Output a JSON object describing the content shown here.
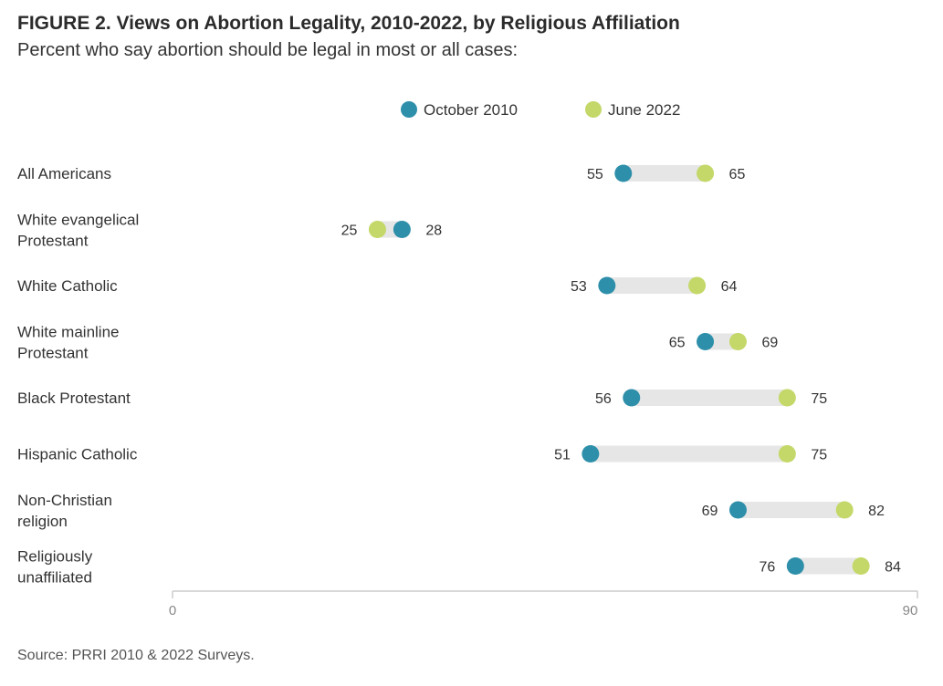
{
  "header": {
    "figure_title": "FIGURE 2.  Views on Abortion Legality, 2010-2022, by Religious Affiliation",
    "subtitle": "Percent who say abortion should be legal in most or all cases:"
  },
  "footer": {
    "source": "Source: PRRI 2010 & 2022 Surveys."
  },
  "colors": {
    "october_2010": "#2e8faa",
    "june_2022": "#c3d868",
    "connector": "#e6e6e6",
    "axis": "#cccccc",
    "label_text": "#333333",
    "tick_text": "#888888"
  },
  "chart_data": {
    "type": "dumbbell",
    "xlim": [
      0,
      90
    ],
    "x_ticks": [
      "0",
      "90"
    ],
    "legend_position": "top",
    "grid": false,
    "series": [
      {
        "name": "October 2010",
        "color": "#2e8faa"
      },
      {
        "name": "June 2022",
        "color": "#c3d868"
      }
    ],
    "categories": [
      {
        "label": [
          "All Americans"
        ],
        "october_2010": 55,
        "june_2022": 65
      },
      {
        "label": [
          "White evangelical",
          "Protestant"
        ],
        "october_2010": 28,
        "june_2022": 25
      },
      {
        "label": [
          "White Catholic"
        ],
        "october_2010": 53,
        "june_2022": 64
      },
      {
        "label": [
          "White mainline",
          "Protestant"
        ],
        "october_2010": 65,
        "june_2022": 69
      },
      {
        "label": [
          "Black Protestant"
        ],
        "october_2010": 56,
        "june_2022": 75
      },
      {
        "label": [
          "Hispanic Catholic"
        ],
        "october_2010": 51,
        "june_2022": 75
      },
      {
        "label": [
          "Non-Christian",
          "religion"
        ],
        "october_2010": 69,
        "june_2022": 82
      },
      {
        "label": [
          "Religiously",
          "unaffiliated"
        ],
        "october_2010": 76,
        "june_2022": 84
      }
    ]
  }
}
